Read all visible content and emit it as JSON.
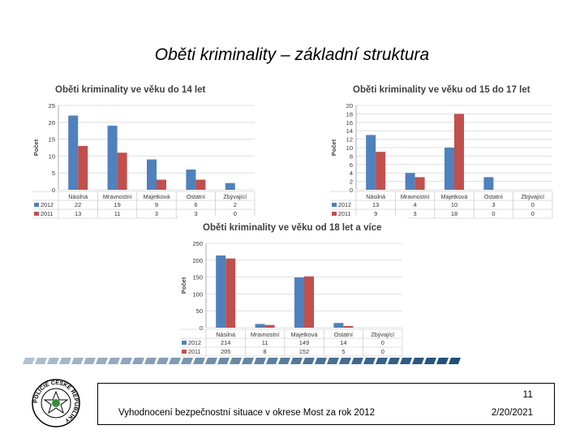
{
  "slide": {
    "title": "Oběti kriminality – základní struktura",
    "page_number": "11",
    "footer_text": "Vyhodnocení bezpečnostní situace v okrese Most za rok 2012",
    "date": "2/20/2021",
    "logo_text": "POLICIE ČESKÉ REPUBLIKY"
  },
  "colors": {
    "series_2012": "#4F81BD",
    "series_2011": "#C0504D",
    "grid": "#d9d9d9",
    "stripe": "#1F4E79"
  },
  "chart_data": [
    {
      "type": "bar",
      "title": "Oběti kriminality ve věku do 14 let",
      "ylabel": "Počet",
      "categories": [
        "Násilná",
        "Mravnostní",
        "Majetková",
        "Ostatní",
        "Zbývající"
      ],
      "ylim": [
        0,
        25
      ],
      "yticks": [
        "0",
        "5",
        "10",
        "15",
        "20",
        "25"
      ],
      "series": [
        {
          "name": "2012",
          "values": [
            22,
            19,
            9,
            6,
            2
          ]
        },
        {
          "name": "2011",
          "values": [
            13,
            11,
            3,
            3,
            0
          ]
        }
      ],
      "grid": true,
      "data_table": true
    },
    {
      "type": "bar",
      "title": "Oběti kriminality ve věku od 15 do 17 let",
      "ylabel": "Počet",
      "categories": [
        "Násilná",
        "Mravnostní",
        "Majetková",
        "Ostatní",
        "Zbývající"
      ],
      "ylim": [
        0,
        20
      ],
      "yticks": [
        "0",
        "2",
        "4",
        "6",
        "8",
        "10",
        "12",
        "14",
        "16",
        "18",
        "20"
      ],
      "series": [
        {
          "name": "2012",
          "values": [
            13,
            4,
            10,
            3,
            0
          ]
        },
        {
          "name": "2011",
          "values": [
            9,
            3,
            18,
            0,
            0
          ]
        }
      ],
      "grid": true,
      "data_table": true
    },
    {
      "type": "bar",
      "title": "Oběti kriminality ve věku od 18 let a více",
      "ylabel": "Počet",
      "categories": [
        "Násilná",
        "Mravnostní",
        "Majetková",
        "Ostatní",
        "Zbývající"
      ],
      "ylim": [
        0,
        250
      ],
      "yticks": [
        "0",
        "50",
        "100",
        "150",
        "200",
        "250"
      ],
      "series": [
        {
          "name": "2012",
          "values": [
            214,
            11,
            149,
            14,
            0
          ]
        },
        {
          "name": "2011",
          "values": [
            205,
            8,
            152,
            5,
            0
          ]
        }
      ],
      "grid": true,
      "data_table": true
    }
  ]
}
